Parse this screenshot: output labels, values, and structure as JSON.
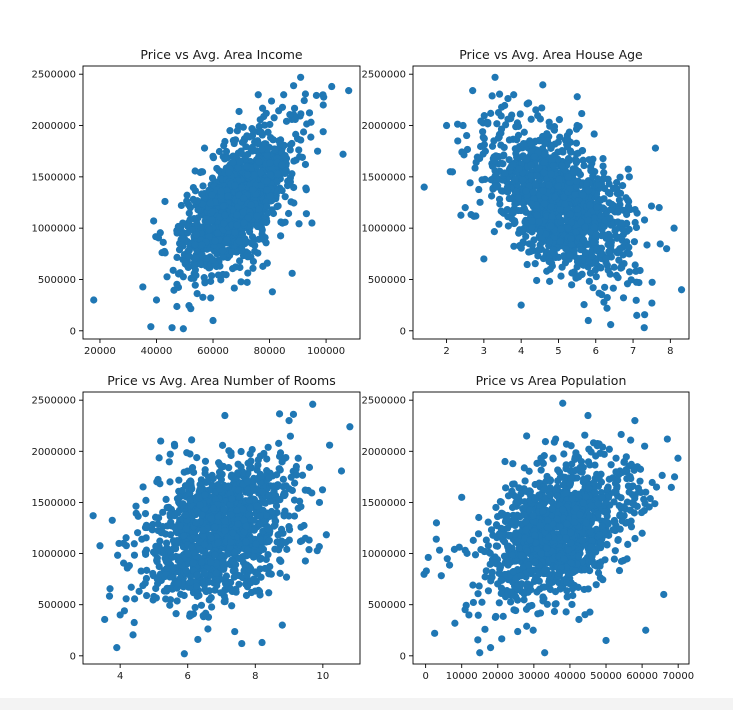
{
  "colors": {
    "marker": "#1f77b4",
    "axis": "#000000",
    "background": "#ffffff"
  },
  "chart_data": [
    {
      "type": "scatter",
      "title": "Price vs Avg. Area Income",
      "xlabel": "",
      "ylabel": "",
      "xlim": [
        14000,
        112000
      ],
      "ylim": [
        -80000,
        2580000
      ],
      "xticks": [
        20000,
        40000,
        60000,
        80000,
        100000
      ],
      "xtick_labels": [
        "20000",
        "40000",
        "60000",
        "80000",
        "100000"
      ],
      "yticks": [
        0,
        500000,
        1000000,
        1500000,
        2000000,
        2500000
      ],
      "ytick_labels": [
        "0",
        "500000",
        "1000000",
        "1500000",
        "2000000",
        "2500000"
      ],
      "grid": false,
      "cloud": {
        "cx": 68500,
        "cy": 1232000,
        "sx": 10000,
        "sy": 350000,
        "corr": 0.64,
        "n": 1300
      },
      "points": [
        [
          17800,
          300000
        ],
        [
          108000,
          2340000
        ],
        [
          91000,
          2470000
        ],
        [
          45500,
          30000
        ],
        [
          49500,
          20000
        ],
        [
          38000,
          40000
        ],
        [
          60000,
          100000
        ],
        [
          95000,
          1050000
        ],
        [
          102000,
          2380000
        ],
        [
          85000,
          2300000
        ],
        [
          72000,
          1900000
        ],
        [
          52000,
          1200000
        ],
        [
          39000,
          1070000
        ],
        [
          97000,
          1750000
        ],
        [
          106000,
          1720000
        ],
        [
          60000,
          1700000
        ],
        [
          43000,
          1260000
        ],
        [
          57000,
          1780000
        ],
        [
          81000,
          380000
        ],
        [
          88000,
          560000
        ],
        [
          76000,
          2300000
        ],
        [
          66000,
          1950000
        ],
        [
          99000,
          2200000
        ],
        [
          40000,
          300000
        ]
      ]
    },
    {
      "type": "scatter",
      "title": "Price vs Avg. Area House Age",
      "xlabel": "",
      "ylabel": "",
      "xlim": [
        1.1,
        8.5
      ],
      "ylim": [
        -80000,
        2580000
      ],
      "xticks": [
        2,
        3,
        4,
        5,
        6,
        7,
        8
      ],
      "xtick_labels": [
        "2",
        "3",
        "4",
        "5",
        "6",
        "7",
        "8"
      ],
      "yticks": [
        0,
        500000,
        1000000,
        1500000,
        2000000,
        2500000
      ],
      "ytick_labels": [
        "0",
        "500000",
        "1000000",
        "1500000",
        "2000000",
        "2500000"
      ],
      "grid": false,
      "cloud": {
        "cx": 5.0,
        "cy": 1232000,
        "sx": 0.95,
        "sy": 350000,
        "corr": -0.45,
        "n": 1300
      },
      "points": [
        [
          1.4,
          1400000
        ],
        [
          3.3,
          2470000
        ],
        [
          2.7,
          2340000
        ],
        [
          8.3,
          400000
        ],
        [
          7.6,
          1780000
        ],
        [
          7.3,
          30000
        ],
        [
          7.9,
          800000
        ],
        [
          6.4,
          60000
        ],
        [
          2.3,
          1850000
        ],
        [
          2.1,
          1550000
        ],
        [
          3.0,
          700000
        ],
        [
          7.1,
          150000
        ],
        [
          8.1,
          1000000
        ],
        [
          2.0,
          2000000
        ],
        [
          3.8,
          2300000
        ],
        [
          4.2,
          2220000
        ],
        [
          5.8,
          100000
        ],
        [
          6.9,
          1500000
        ],
        [
          2.5,
          1200000
        ],
        [
          7.7,
          1200000
        ],
        [
          4.0,
          250000
        ],
        [
          5.5,
          2000000
        ]
      ]
    },
    {
      "type": "scatter",
      "title": "Price vs Avg. Area Number of Rooms",
      "xlabel": "",
      "ylabel": "",
      "xlim": [
        2.9,
        11.1
      ],
      "ylim": [
        -80000,
        2580000
      ],
      "xticks": [
        4,
        6,
        8,
        10
      ],
      "xtick_labels": [
        "4",
        "6",
        "8",
        "10"
      ],
      "yticks": [
        0,
        500000,
        1000000,
        1500000,
        2000000,
        2500000
      ],
      "ytick_labels": [
        "0",
        "500000",
        "1000000",
        "1500000",
        "2000000",
        "2500000"
      ],
      "grid": false,
      "cloud": {
        "cx": 6.95,
        "cy": 1232000,
        "sx": 1.05,
        "sy": 350000,
        "corr": 0.32,
        "n": 1300
      },
      "points": [
        [
          3.2,
          1370000
        ],
        [
          10.8,
          2240000
        ],
        [
          9.7,
          2460000
        ],
        [
          3.9,
          80000
        ],
        [
          5.9,
          20000
        ],
        [
          8.2,
          130000
        ],
        [
          10.2,
          2060000
        ],
        [
          7.1,
          2350000
        ],
        [
          4.1,
          1100000
        ],
        [
          9.9,
          1500000
        ],
        [
          4.0,
          400000
        ],
        [
          5.2,
          2100000
        ],
        [
          8.8,
          300000
        ],
        [
          6.3,
          160000
        ],
        [
          7.6,
          120000
        ],
        [
          9.0,
          2300000
        ]
      ]
    },
    {
      "type": "scatter",
      "title": "Price vs Area Population",
      "xlabel": "",
      "ylabel": "",
      "xlim": [
        -3500,
        73000
      ],
      "ylim": [
        -80000,
        2580000
      ],
      "xticks": [
        0,
        10000,
        20000,
        30000,
        40000,
        50000,
        60000,
        70000
      ],
      "xtick_labels": [
        "0",
        "10000",
        "20000",
        "30000",
        "40000",
        "50000",
        "60000",
        "70000"
      ],
      "yticks": [
        0,
        500000,
        1000000,
        1500000,
        2000000,
        2500000
      ],
      "ytick_labels": [
        "0",
        "500000",
        "1000000",
        "1500000",
        "2000000",
        "2500000"
      ],
      "grid": false,
      "cloud": {
        "cx": 36200,
        "cy": 1232000,
        "sx": 9900,
        "sy": 350000,
        "corr": 0.41,
        "n": 1300
      },
      "points": [
        [
          200,
          830000
        ],
        [
          2500,
          220000
        ],
        [
          3000,
          1300000
        ],
        [
          38000,
          2470000
        ],
        [
          33000,
          30000
        ],
        [
          69000,
          1750000
        ],
        [
          67000,
          2120000
        ],
        [
          15000,
          30000
        ],
        [
          61000,
          250000
        ],
        [
          6000,
          950000
        ],
        [
          10000,
          1550000
        ],
        [
          58000,
          2300000
        ],
        [
          45000,
          2350000
        ],
        [
          22000,
          1900000
        ],
        [
          66000,
          600000
        ],
        [
          50000,
          150000
        ],
        [
          12000,
          400000
        ],
        [
          18000,
          80000
        ],
        [
          64000,
          1650000
        ],
        [
          28000,
          2150000
        ]
      ]
    }
  ]
}
